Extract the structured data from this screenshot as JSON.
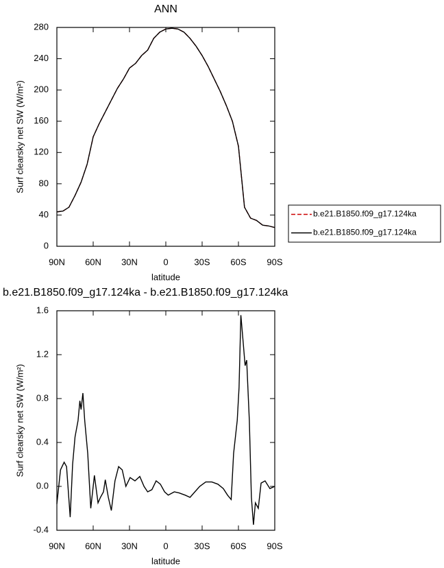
{
  "chart_data": [
    {
      "type": "line",
      "title": "ANN",
      "xlabel": "latitude",
      "ylabel": "Surf clearsky net SW (W/m²)",
      "x": [
        90,
        85,
        80,
        75,
        70,
        65,
        60,
        55,
        50,
        45,
        40,
        35,
        30,
        25,
        20,
        15,
        10,
        5,
        0,
        -5,
        -10,
        -15,
        -20,
        -25,
        -30,
        -35,
        -40,
        -45,
        -50,
        -55,
        -60,
        -65,
        -70,
        -75,
        -80,
        -85,
        -90
      ],
      "series": [
        {
          "name": "b.e21.B1850.f09_g17.124ka",
          "color": "#cc0000",
          "line_style": "dashed",
          "values": [
            44,
            45,
            50,
            65,
            82,
            105,
            140,
            157,
            172,
            187,
            202,
            214,
            228,
            234,
            244,
            251,
            266,
            274,
            278,
            279,
            278,
            274,
            266,
            256,
            244,
            230,
            214,
            198,
            180,
            160,
            128,
            50,
            36,
            33,
            27,
            26,
            24
          ]
        },
        {
          "name": "b.e21.B1850.f09_g17.124ka",
          "color": "#000000",
          "line_style": "solid",
          "values": [
            44,
            45,
            50,
            65,
            82,
            105,
            140,
            157,
            172,
            187,
            202,
            214,
            228,
            234,
            244,
            251,
            266,
            274,
            278,
            279,
            278,
            274,
            266,
            256,
            244,
            230,
            214,
            198,
            180,
            160,
            128,
            50,
            36,
            33,
            27,
            26,
            24
          ]
        }
      ],
      "xlim": [
        90,
        -90
      ],
      "xticks": [
        {
          "value": 90,
          "label": "90N"
        },
        {
          "value": 60,
          "label": "60N"
        },
        {
          "value": 30,
          "label": "30N"
        },
        0,
        {
          "value": -30,
          "label": "30S"
        },
        {
          "value": -60,
          "label": "60S"
        },
        {
          "value": -90,
          "label": "90S"
        }
      ],
      "ylim": [
        0,
        280
      ],
      "yticks": [
        0,
        40,
        80,
        120,
        160,
        200,
        240,
        280
      ],
      "legend": "right"
    },
    {
      "type": "line",
      "title": "b.e21.B1850.f09_g17.124ka - b.e21.B1850.f09_g17.124ka",
      "xlabel": "latitude",
      "ylabel": "Surf clearsky net SW (W/m²)",
      "x": [
        90,
        87,
        84,
        82,
        79,
        77,
        75,
        72.5,
        71,
        70,
        68.5,
        67,
        64.5,
        62,
        59,
        56,
        54,
        51.5,
        50,
        47.5,
        45,
        42,
        39,
        36,
        33,
        29.5,
        25.5,
        21.5,
        18,
        15,
        11.5,
        8,
        4.5,
        1,
        -2,
        -7,
        -11,
        -16,
        -20,
        -24,
        -28,
        -33,
        -38,
        -43,
        -47.5,
        -51,
        -54,
        -56,
        -59,
        -60.5,
        -62,
        -64,
        -65.5,
        -66.8,
        -69,
        -70.7,
        -72.4,
        -74,
        -76.4,
        -78.7,
        -82,
        -86,
        -90
      ],
      "series": [
        {
          "color": "#000000",
          "line_style": "solid",
          "values": [
            -0.16,
            0.15,
            0.22,
            0.18,
            -0.28,
            0.2,
            0.45,
            0.6,
            0.78,
            0.7,
            0.85,
            0.6,
            0.3,
            -0.2,
            0.1,
            -0.15,
            -0.1,
            -0.05,
            0.06,
            -0.1,
            -0.22,
            0.05,
            0.18,
            0.15,
            0.0,
            0.08,
            0.05,
            0.09,
            0.0,
            -0.05,
            -0.03,
            0.05,
            0.02,
            -0.05,
            -0.08,
            -0.05,
            -0.06,
            -0.08,
            -0.1,
            -0.05,
            0.0,
            0.04,
            0.04,
            0.02,
            -0.02,
            -0.08,
            -0.12,
            0.3,
            0.6,
            0.9,
            1.56,
            1.3,
            1.1,
            1.15,
            0.6,
            -0.1,
            -0.35,
            -0.15,
            -0.2,
            0.03,
            0.05,
            -0.02,
            0.0
          ]
        }
      ],
      "xlim": [
        90,
        -90
      ],
      "xticks": [
        {
          "value": 90,
          "label": "90N"
        },
        {
          "value": 60,
          "label": "60N"
        },
        {
          "value": 30,
          "label": "30N"
        },
        0,
        {
          "value": -30,
          "label": "30S"
        },
        {
          "value": -60,
          "label": "60S"
        },
        {
          "value": -90,
          "label": "90S"
        }
      ],
      "ylim": [
        -0.4,
        1.6
      ],
      "yticks": [
        -0.4,
        {
          "value": 0,
          "label": "0.0"
        },
        0.4,
        0.8,
        1.2,
        1.6
      ]
    }
  ]
}
